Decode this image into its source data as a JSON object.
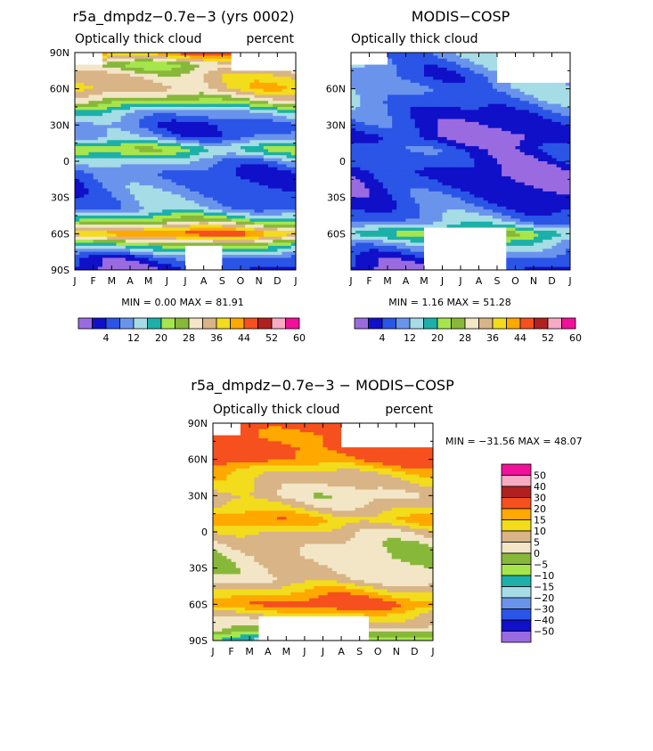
{
  "chart_data": [
    {
      "type": "heatmap",
      "title": "r5a_dmpdz−0.7e−3 (yrs 0002)",
      "subtitle_left": "Optically thick cloud",
      "subtitle_right": "percent",
      "x_ticks": [
        "J",
        "F",
        "M",
        "A",
        "M",
        "J",
        "J",
        "A",
        "S",
        "O",
        "N",
        "D",
        "J"
      ],
      "y_ticks": [
        "90N",
        "60N",
        "30N",
        "0",
        "30S",
        "60S",
        "90S"
      ],
      "xlim": [
        0,
        12
      ],
      "ylim": [
        -90,
        90
      ],
      "minmax": "MIN =    0.00 MAX =   81.91",
      "min": 0.0,
      "max": 81.91,
      "colorbar_labels": [
        "4",
        "12",
        "20",
        "28",
        "36",
        "44",
        "52",
        "60"
      ],
      "levels": [
        4,
        8,
        12,
        16,
        20,
        24,
        28,
        32,
        36,
        40,
        44,
        48,
        52,
        56,
        60
      ],
      "profile": [
        {
          "lat": -90,
          "value": 6
        },
        {
          "lat": -80,
          "value": 10
        },
        {
          "lat": -70,
          "value": 24
        },
        {
          "lat": -60,
          "value": 48
        },
        {
          "lat": -50,
          "value": 28
        },
        {
          "lat": -40,
          "value": 14
        },
        {
          "lat": -20,
          "value": 11
        },
        {
          "lat": -10,
          "value": 10
        },
        {
          "lat": 0,
          "value": 15
        },
        {
          "lat": 10,
          "value": 26
        },
        {
          "lat": 20,
          "value": 12
        },
        {
          "lat": 30,
          "value": 10
        },
        {
          "lat": 40,
          "value": 16
        },
        {
          "lat": 50,
          "value": 30
        },
        {
          "lat": 60,
          "value": 40
        },
        {
          "lat": 70,
          "value": 38
        },
        {
          "lat": 80,
          "value": 30
        },
        {
          "lat": 90,
          "value": 50
        }
      ],
      "missing": [
        {
          "t0": 6.0,
          "t1": 8.0,
          "lat0": -90,
          "lat1": -70
        },
        {
          "t0": 0.0,
          "t1": 1.5,
          "lat0": 80,
          "lat1": 90
        },
        {
          "t0": 8.5,
          "t1": 12.0,
          "lat0": 75,
          "lat1": 90
        }
      ]
    },
    {
      "type": "heatmap",
      "title": "MODIS−COSP",
      "subtitle_left": "Optically thick cloud",
      "subtitle_right": "",
      "x_ticks": [
        "J",
        "F",
        "M",
        "A",
        "M",
        "J",
        "J",
        "A",
        "S",
        "O",
        "N",
        "D",
        "J"
      ],
      "y_ticks": [
        "60N",
        "30N",
        "0",
        "30S",
        "60S"
      ],
      "xlim": [
        0,
        12
      ],
      "ylim": [
        -90,
        90
      ],
      "minmax": "MIN =    1.16 MAX =   51.28",
      "min": 1.16,
      "max": 51.28,
      "colorbar_labels": [
        "4",
        "12",
        "20",
        "28",
        "36",
        "44",
        "52",
        "60"
      ],
      "levels": [
        4,
        8,
        12,
        16,
        20,
        24,
        28,
        32,
        36,
        40,
        44,
        48,
        52,
        56,
        60
      ],
      "profile": [
        {
          "lat": -90,
          "value": 6
        },
        {
          "lat": -80,
          "value": 10
        },
        {
          "lat": -70,
          "value": 16
        },
        {
          "lat": -60,
          "value": 26
        },
        {
          "lat": -50,
          "value": 14
        },
        {
          "lat": -40,
          "value": 10
        },
        {
          "lat": -20,
          "value": 6
        },
        {
          "lat": -10,
          "value": 5
        },
        {
          "lat": 0,
          "value": 8
        },
        {
          "lat": 10,
          "value": 9
        },
        {
          "lat": 20,
          "value": 4
        },
        {
          "lat": 30,
          "value": 7
        },
        {
          "lat": 40,
          "value": 9
        },
        {
          "lat": 50,
          "value": 12
        },
        {
          "lat": 60,
          "value": 14
        },
        {
          "lat": 70,
          "value": 12
        },
        {
          "lat": 80,
          "value": 14
        },
        {
          "lat": 90,
          "value": 16
        }
      ],
      "missing": [
        {
          "t0": 4.0,
          "t1": 8.5,
          "lat0": -90,
          "lat1": -55
        },
        {
          "t0": 0.0,
          "t1": 2.0,
          "lat0": 80,
          "lat1": 90
        },
        {
          "t0": 8.0,
          "t1": 12.0,
          "lat0": 65,
          "lat1": 90
        }
      ]
    },
    {
      "type": "heatmap",
      "title": "r5a_dmpdz−0.7e−3 − MODIS−COSP",
      "subtitle_left": "Optically thick cloud",
      "subtitle_right": "percent",
      "x_ticks": [
        "J",
        "F",
        "M",
        "A",
        "M",
        "J",
        "J",
        "A",
        "S",
        "O",
        "N",
        "D",
        "J"
      ],
      "y_ticks": [
        "90N",
        "60N",
        "30N",
        "0",
        "30S",
        "60S",
        "90S"
      ],
      "xlim": [
        0,
        12
      ],
      "ylim": [
        -90,
        90
      ],
      "minmax": "MIN = −31.56 MAX =  48.07",
      "min": -31.56,
      "max": 48.07,
      "colorbar_labels": [
        "50",
        "40",
        "30",
        "20",
        "15",
        "10",
        "5",
        "0",
        "−5",
        "−10",
        "−15",
        "−20",
        "−30",
        "−40",
        "−50"
      ],
      "levels": [
        -50,
        -40,
        -30,
        -20,
        -15,
        -10,
        -5,
        0,
        5,
        10,
        15,
        20,
        30,
        40,
        50
      ],
      "profile": [
        {
          "lat": -90,
          "value": -12
        },
        {
          "lat": -80,
          "value": 4
        },
        {
          "lat": -70,
          "value": 10
        },
        {
          "lat": -60,
          "value": 22
        },
        {
          "lat": -50,
          "value": 14
        },
        {
          "lat": -40,
          "value": 4
        },
        {
          "lat": -20,
          "value": 2
        },
        {
          "lat": -10,
          "value": 4
        },
        {
          "lat": 0,
          "value": 8
        },
        {
          "lat": 10,
          "value": 17
        },
        {
          "lat": 20,
          "value": 9
        },
        {
          "lat": 30,
          "value": 4
        },
        {
          "lat": 40,
          "value": 8
        },
        {
          "lat": 50,
          "value": 12
        },
        {
          "lat": 60,
          "value": 22
        },
        {
          "lat": 70,
          "value": 25
        },
        {
          "lat": 80,
          "value": 22
        },
        {
          "lat": 90,
          "value": 28
        }
      ],
      "missing": [
        {
          "t0": 2.5,
          "t1": 8.5,
          "lat0": -90,
          "lat1": -70
        },
        {
          "t0": 0.0,
          "t1": 1.5,
          "lat0": 80,
          "lat1": 90
        },
        {
          "t0": 7.0,
          "t1": 12.0,
          "lat0": 70,
          "lat1": 90
        }
      ]
    }
  ],
  "palette": [
    "#9a6be0",
    "#1010c8",
    "#2a55e6",
    "#6a94ec",
    "#a6dce6",
    "#1cb0a8",
    "#a6e64c",
    "#88b83a",
    "#f2e6c6",
    "#d8b486",
    "#f2dc1c",
    "#ffa800",
    "#f5501e",
    "#b02020",
    "#f7aac4",
    "#f0109a"
  ]
}
